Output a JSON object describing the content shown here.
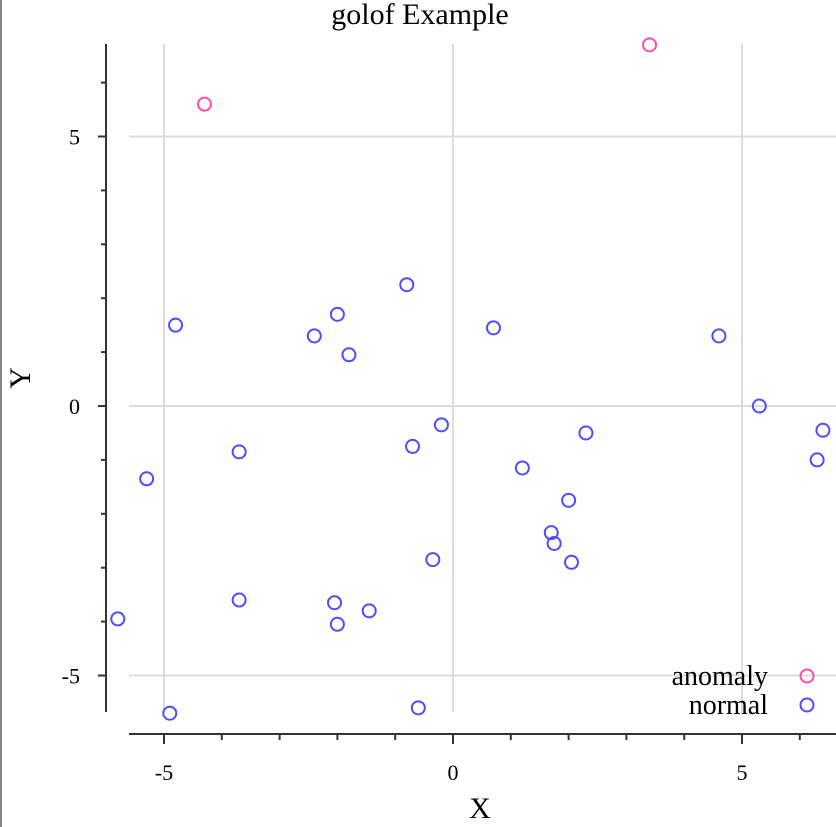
{
  "chart_data": {
    "type": "scatter",
    "title": "golof Example",
    "xlabel": "X",
    "ylabel": "Y",
    "xlim": [
      -5.6,
      6.4
    ],
    "ylim": [
      -5.7,
      6.8
    ],
    "xticks": [
      -5,
      0,
      5
    ],
    "yticks": [
      -5,
      0,
      5
    ],
    "xtick_labels": [
      "-5",
      "0",
      "5"
    ],
    "ytick_labels": [
      "-5",
      "0",
      "5"
    ],
    "grid": true,
    "legend_position": "bottom-right",
    "series": [
      {
        "name": "anomaly",
        "color": "#ff4da6",
        "marker": "hollow-circle",
        "points": [
          [
            -4.3,
            5.6
          ],
          [
            3.4,
            6.7
          ]
        ]
      },
      {
        "name": "normal",
        "color": "#4d4dff",
        "marker": "hollow-circle",
        "points": [
          [
            -4.8,
            1.5
          ],
          [
            -2.4,
            1.3
          ],
          [
            -2.0,
            1.7
          ],
          [
            -1.8,
            0.95
          ],
          [
            -0.8,
            2.25
          ],
          [
            0.7,
            1.45
          ],
          [
            4.6,
            1.3
          ],
          [
            5.3,
            0.0
          ],
          [
            6.4,
            -0.45
          ],
          [
            6.3,
            -1.0
          ],
          [
            2.3,
            -0.5
          ],
          [
            -0.2,
            -0.35
          ],
          [
            -0.7,
            -0.75
          ],
          [
            -3.7,
            -0.85
          ],
          [
            -5.3,
            -1.35
          ],
          [
            1.2,
            -1.15
          ],
          [
            2.0,
            -1.75
          ],
          [
            1.7,
            -2.35
          ],
          [
            1.75,
            -2.55
          ],
          [
            2.05,
            -2.9
          ],
          [
            -0.35,
            -2.85
          ],
          [
            -3.7,
            -3.6
          ],
          [
            -2.05,
            -3.65
          ],
          [
            -1.45,
            -3.8
          ],
          [
            -2.0,
            -4.05
          ],
          [
            -5.8,
            -3.95
          ],
          [
            -4.9,
            -5.7
          ],
          [
            -0.6,
            -5.6
          ]
        ]
      }
    ]
  }
}
